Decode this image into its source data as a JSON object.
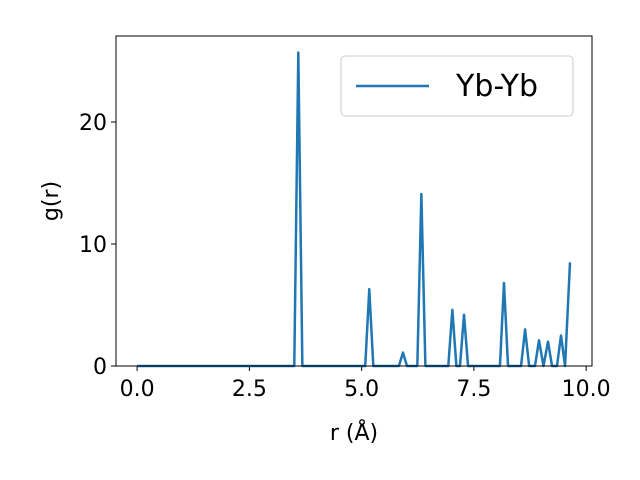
{
  "chart_data": {
    "type": "line",
    "xlabel": "r (Å)",
    "ylabel": "g(r)",
    "x": [
      0,
      3.5,
      3.59,
      3.68,
      5.08,
      5.17,
      5.26,
      5.83,
      5.92,
      6.01,
      6.24,
      6.33,
      6.42,
      6.93,
      7.02,
      7.11,
      7.19,
      7.28,
      7.37,
      8.08,
      8.17,
      8.26,
      8.55,
      8.64,
      8.73,
      8.86,
      8.95,
      9.05,
      9.15,
      9.24,
      9.35,
      9.44,
      9.53,
      9.64
    ],
    "series": [
      {
        "name": "Yb-Yb",
        "color": "#1f77b4",
        "values": [
          0,
          0,
          25.7,
          0,
          0,
          6.3,
          0,
          0,
          1.1,
          0,
          0,
          14.1,
          0,
          0,
          4.6,
          0,
          0,
          4.2,
          0,
          0,
          6.8,
          0,
          0,
          3.0,
          0,
          0,
          2.1,
          0,
          2.0,
          0,
          0,
          2.5,
          0,
          8.5
        ]
      }
    ],
    "xlim": [
      -0.47,
      10.13
    ],
    "xticks": [
      {
        "value": 0,
        "label": "0.0"
      },
      2.5,
      {
        "value": 5,
        "label": "5.0"
      },
      7.5,
      {
        "value": 10,
        "label": "10.0"
      }
    ],
    "ylim": [
      0,
      27.05
    ],
    "yticks": [
      0,
      10,
      20
    ],
    "legend": "upper right"
  }
}
